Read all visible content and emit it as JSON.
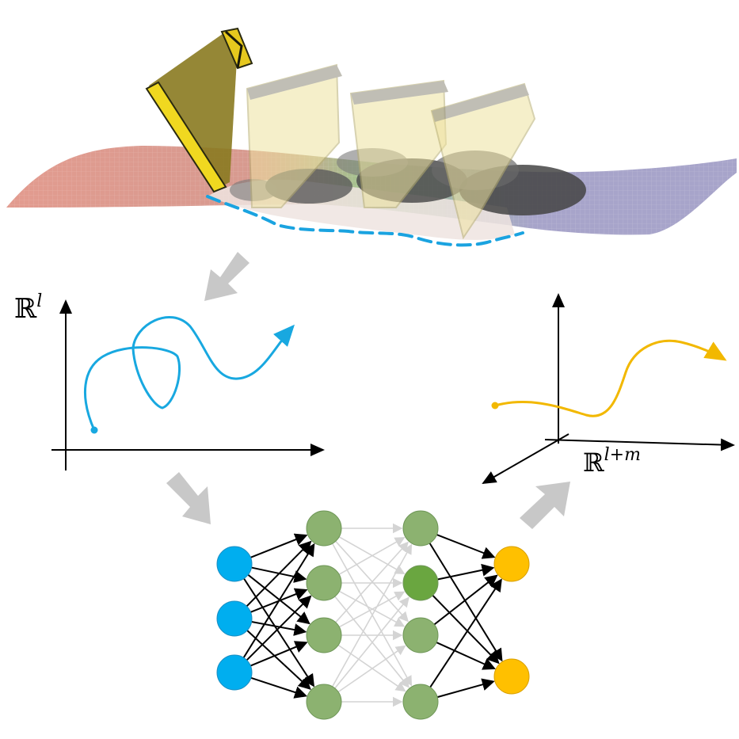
{
  "labels": {
    "latent_space": "ℝ",
    "latent_space_exp": "l",
    "augmented_space": "ℝ",
    "augmented_space_exp": "l+m"
  },
  "colors": {
    "bucket_solid": "#e6c81e",
    "bucket_ghost": "#efe5a8",
    "terrain_red": "#d97a6a",
    "terrain_green": "#7fb56a",
    "terrain_purple": "#8a86b8",
    "dashed_outline": "#1aa3e0",
    "trajectory_blue": "#18a8e0",
    "trajectory_yellow": "#f2b800",
    "node_input": "#00aeef",
    "node_hidden": "#8cb270",
    "node_hidden_highlight": "#6aa640",
    "node_output": "#ffc000",
    "flow_arrow": "#c8c8c8"
  },
  "network": {
    "layers": [
      3,
      4,
      4,
      2
    ]
  }
}
